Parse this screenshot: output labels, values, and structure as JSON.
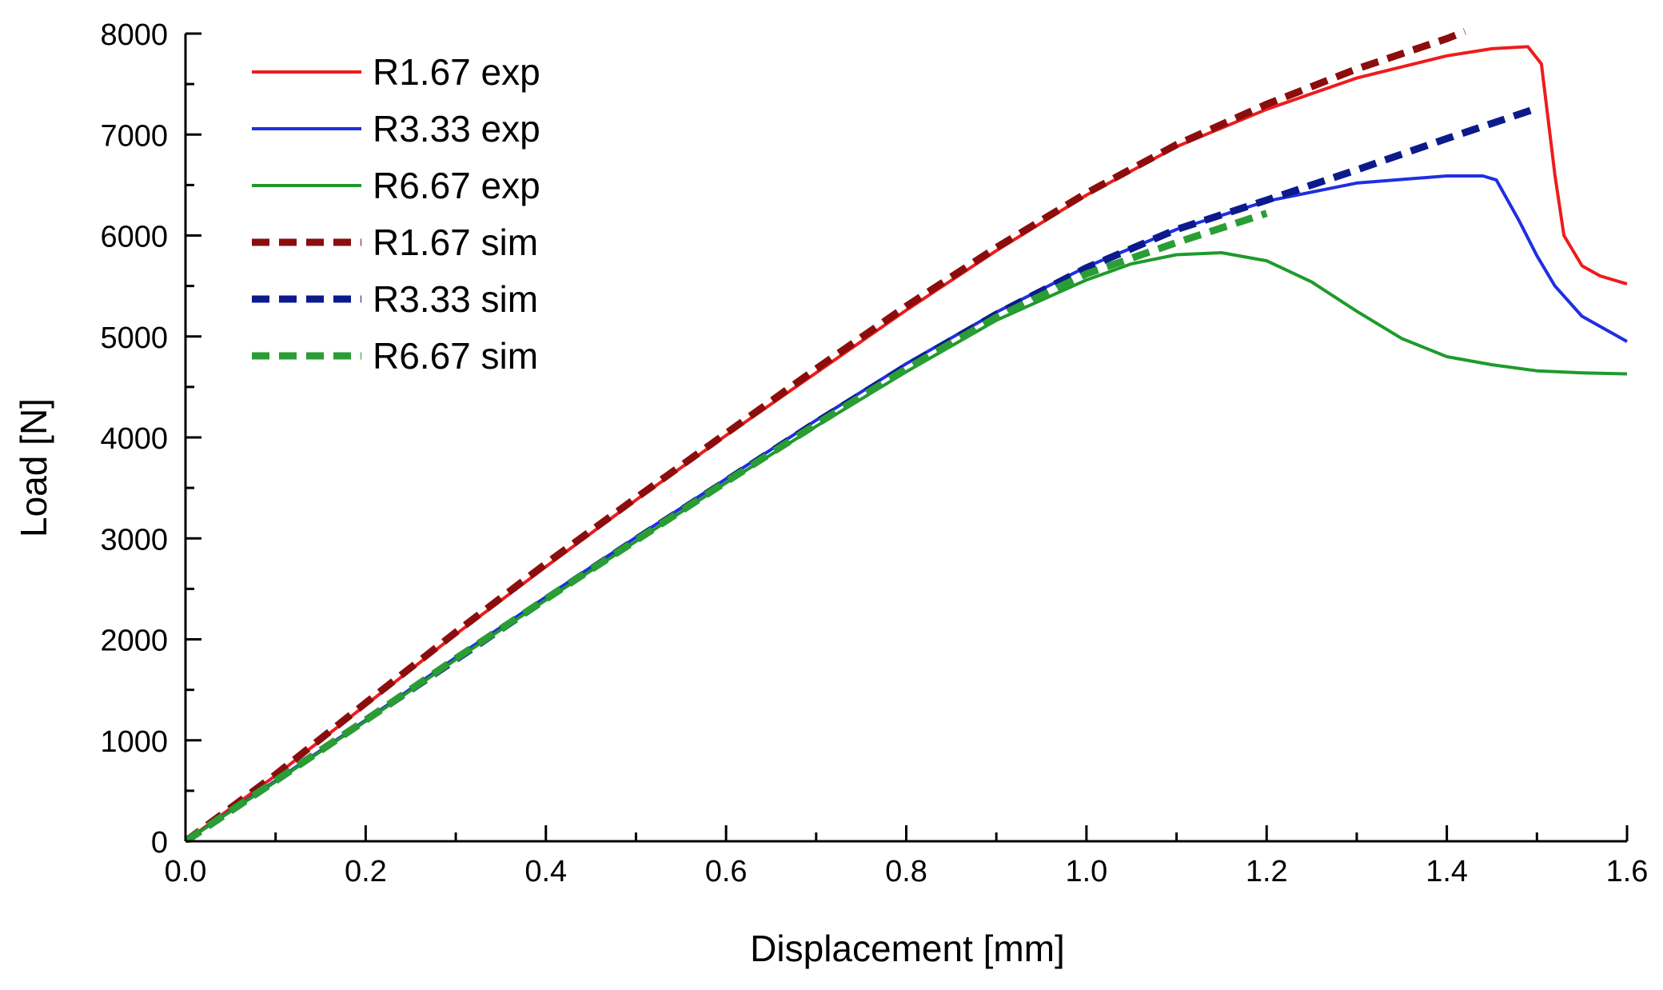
{
  "chart_data": {
    "type": "line",
    "title": "",
    "xlabel": "Displacement [mm]",
    "ylabel": "Load [N]",
    "xlim": [
      0,
      1.6
    ],
    "ylim": [
      0,
      8000
    ],
    "xticks": [
      "0.0",
      "0.2",
      "0.4",
      "0.6",
      "0.8",
      "1.0",
      "1.2",
      "1.4",
      "1.6"
    ],
    "yticks": [
      "0",
      "1000",
      "2000",
      "3000",
      "4000",
      "5000",
      "6000",
      "7000",
      "8000"
    ],
    "grid": false,
    "legend_position": "top-left",
    "series": [
      {
        "name": "R1.67 exp",
        "color": "#ee1c1c",
        "style": "solid",
        "x": [
          0,
          0.1,
          0.2,
          0.3,
          0.4,
          0.5,
          0.6,
          0.7,
          0.8,
          0.9,
          1.0,
          1.1,
          1.2,
          1.3,
          1.4,
          1.45,
          1.49,
          1.505,
          1.52,
          1.53,
          1.55,
          1.57,
          1.6
        ],
        "y": [
          0,
          650,
          1350,
          2050,
          2720,
          3380,
          4020,
          4640,
          5260,
          5850,
          6400,
          6880,
          7250,
          7560,
          7780,
          7850,
          7870,
          7700,
          6600,
          6000,
          5700,
          5600,
          5520
        ]
      },
      {
        "name": "R3.33 exp",
        "color": "#1f2fe0",
        "style": "solid",
        "x": [
          0,
          0.1,
          0.2,
          0.3,
          0.4,
          0.5,
          0.6,
          0.7,
          0.8,
          0.9,
          1.0,
          1.1,
          1.2,
          1.3,
          1.4,
          1.44,
          1.455,
          1.48,
          1.5,
          1.52,
          1.55,
          1.6
        ],
        "y": [
          0,
          600,
          1200,
          1820,
          2420,
          3010,
          3590,
          4170,
          4730,
          5240,
          5690,
          6060,
          6340,
          6520,
          6590,
          6590,
          6550,
          6150,
          5800,
          5500,
          5200,
          4950
        ]
      },
      {
        "name": "R6.67 exp",
        "color": "#1e9a2c",
        "style": "solid",
        "x": [
          0,
          0.1,
          0.2,
          0.3,
          0.4,
          0.5,
          0.6,
          0.7,
          0.8,
          0.9,
          1.0,
          1.05,
          1.1,
          1.15,
          1.2,
          1.25,
          1.3,
          1.35,
          1.4,
          1.45,
          1.5,
          1.55,
          1.6
        ],
        "y": [
          0,
          590,
          1190,
          1800,
          2390,
          2970,
          3550,
          4110,
          4650,
          5160,
          5560,
          5720,
          5810,
          5830,
          5750,
          5540,
          5250,
          4980,
          4800,
          4720,
          4660,
          4640,
          4630
        ]
      },
      {
        "name": "R1.67 sim",
        "color": "#8b0d0d",
        "style": "dashed",
        "x": [
          0,
          0.1,
          0.2,
          0.3,
          0.4,
          0.5,
          0.6,
          0.7,
          0.8,
          0.9,
          1.0,
          1.1,
          1.2,
          1.3,
          1.4,
          1.42
        ],
        "y": [
          0,
          660,
          1370,
          2070,
          2750,
          3400,
          4040,
          4680,
          5300,
          5880,
          6420,
          6900,
          7300,
          7650,
          7950,
          8020
        ]
      },
      {
        "name": "R3.33 sim",
        "color": "#0c1a8c",
        "style": "dashed",
        "x": [
          0,
          0.1,
          0.2,
          0.3,
          0.4,
          0.5,
          0.6,
          0.7,
          0.8,
          0.9,
          1.0,
          1.1,
          1.2,
          1.3,
          1.4,
          1.5
        ],
        "y": [
          0,
          600,
          1200,
          1800,
          2400,
          2990,
          3570,
          4150,
          4700,
          5220,
          5680,
          6060,
          6350,
          6650,
          6960,
          7260
        ]
      },
      {
        "name": "R6.67 sim",
        "color": "#2a9d34",
        "style": "dashed",
        "x": [
          0,
          0.1,
          0.2,
          0.3,
          0.4,
          0.5,
          0.6,
          0.7,
          0.8,
          0.9,
          1.0,
          1.1,
          1.2
        ],
        "y": [
          0,
          600,
          1200,
          1810,
          2400,
          2980,
          3560,
          4130,
          4680,
          5190,
          5620,
          5930,
          6220
        ]
      }
    ]
  }
}
